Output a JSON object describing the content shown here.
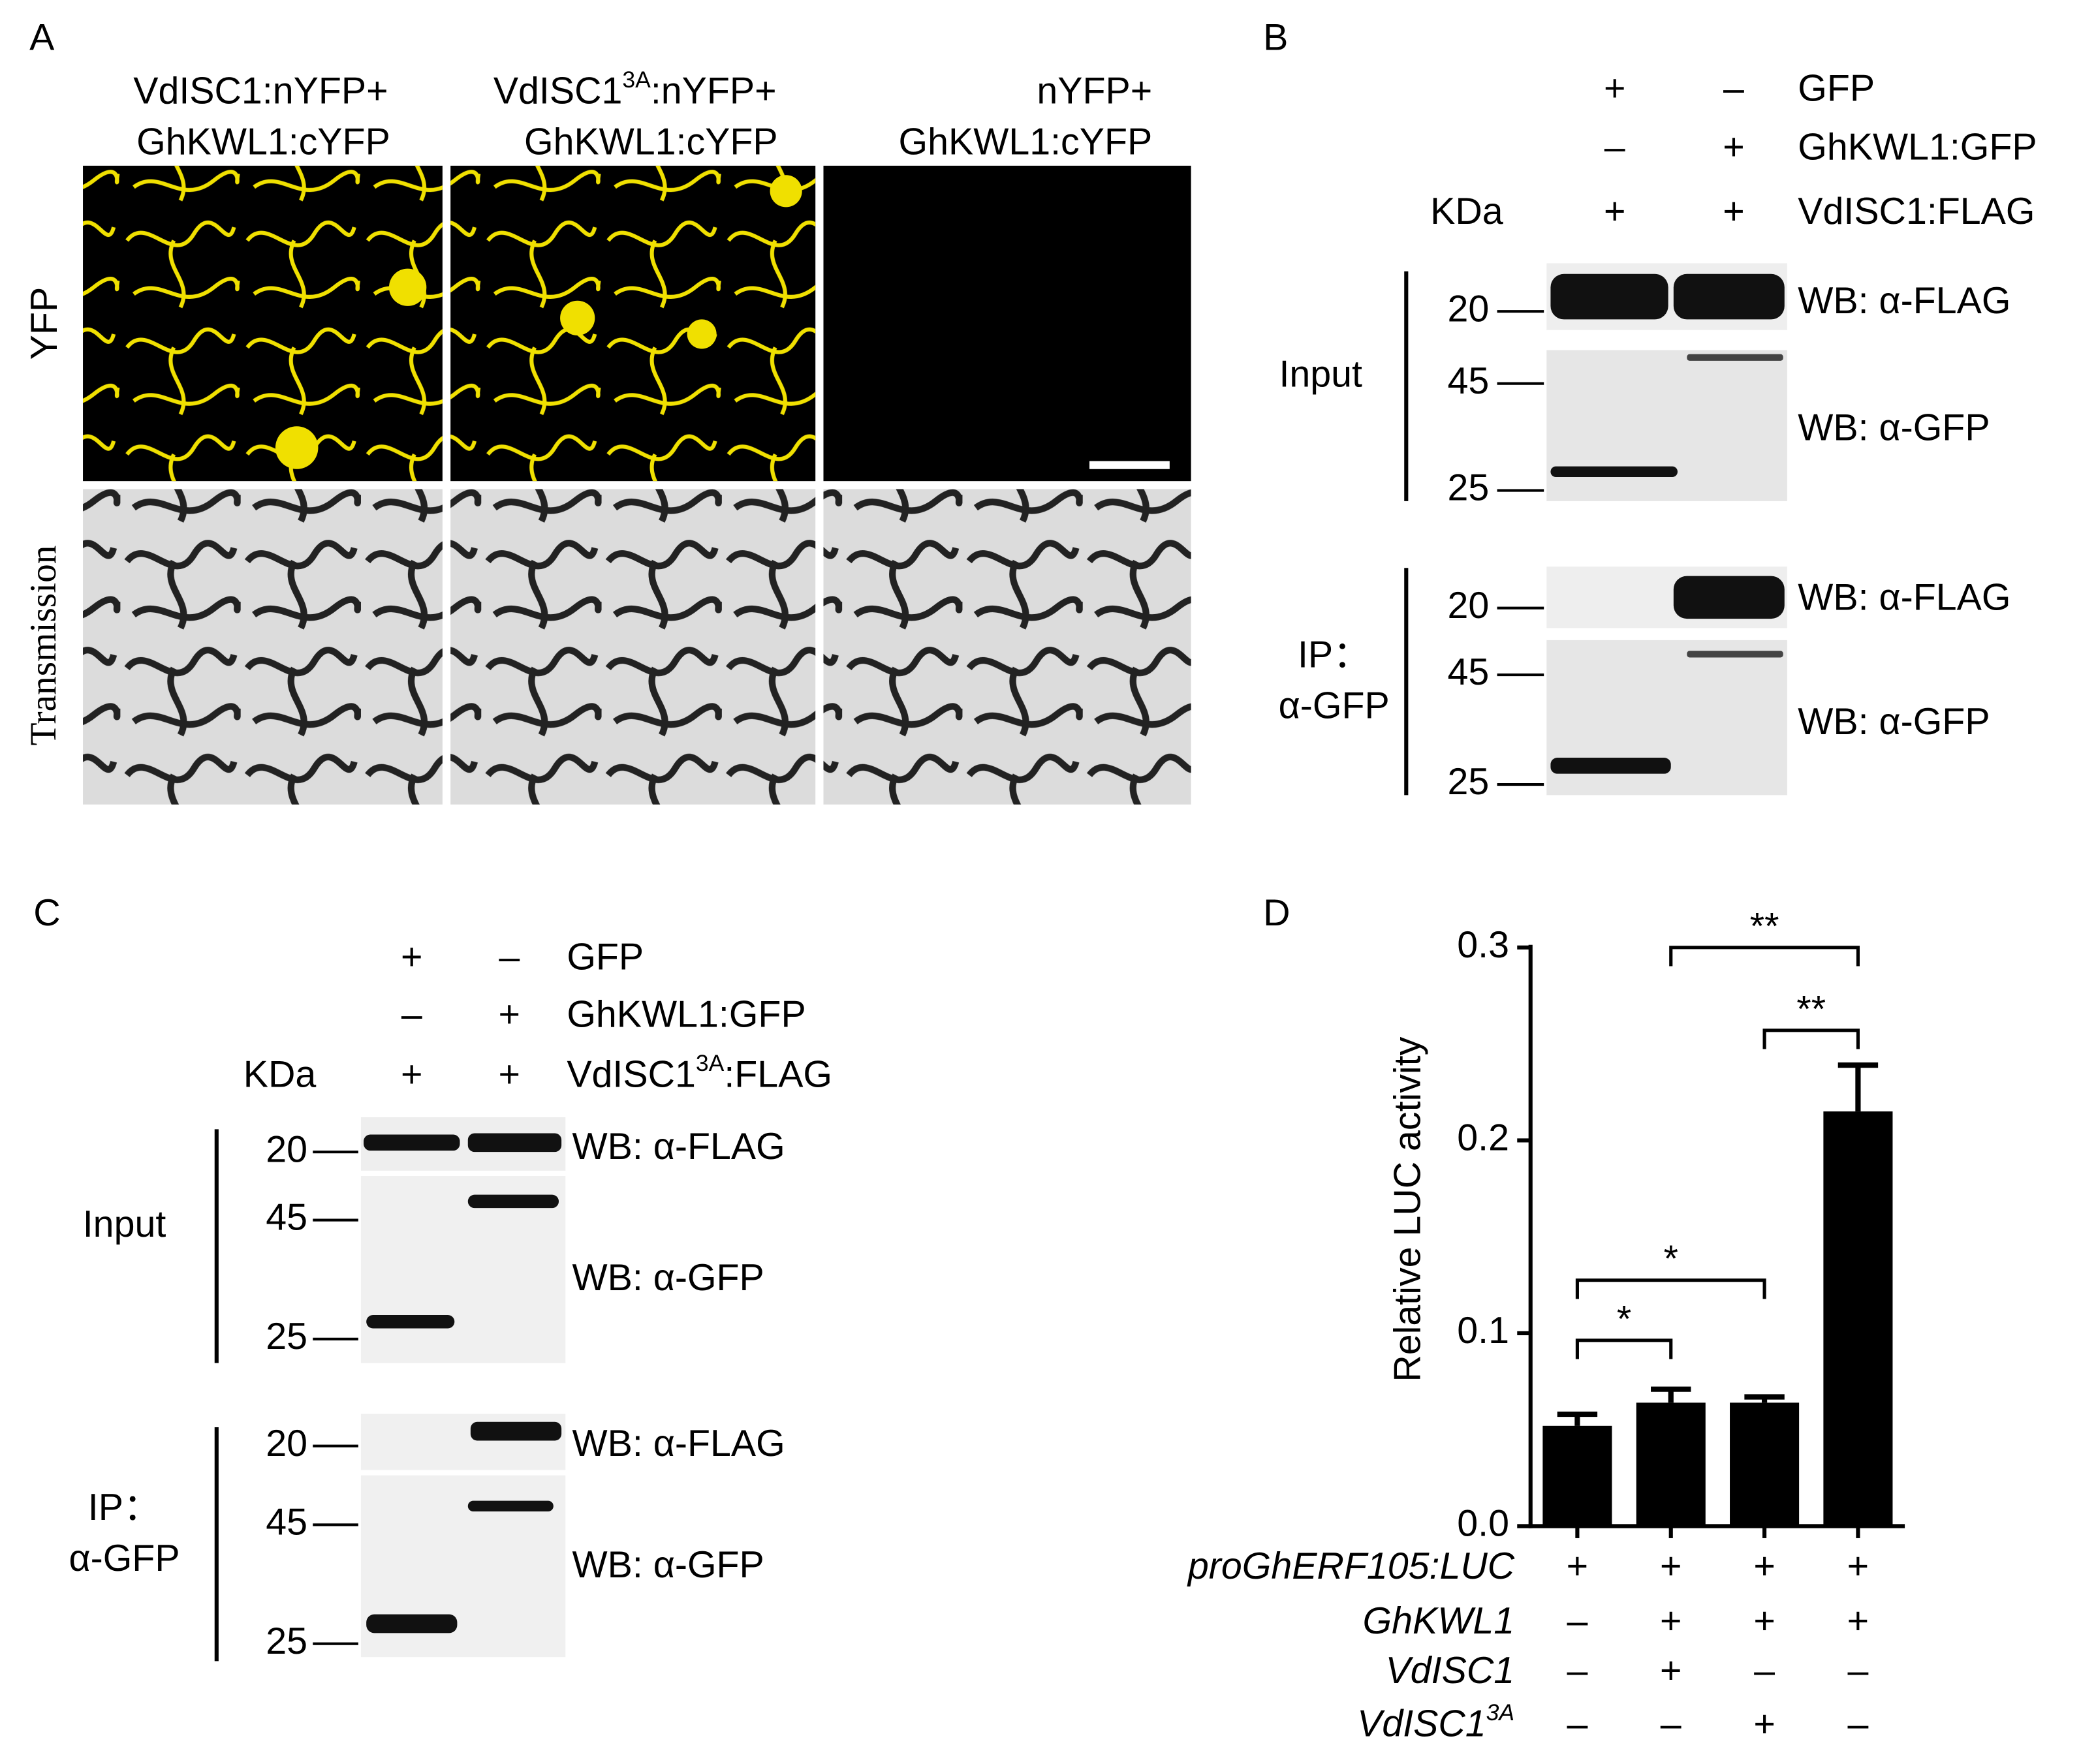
{
  "panel_a": {
    "label": "A",
    "columns": [
      {
        "line1": "VdISC1:nYFP+",
        "line2": "GhKWL1:cYFP"
      },
      {
        "line1": {
          "base": "VdISC1",
          "sup": "3A",
          "rest": ":nYFP+"
        },
        "line2": "GhKWL1:cYFP"
      },
      {
        "line1": "nYFP+",
        "line2": "GhKWL1:cYFP"
      }
    ],
    "rows": [
      "YFP",
      "Transmission"
    ]
  },
  "panel_b": {
    "label": "B",
    "kda": "KDa",
    "conditions": [
      {
        "name": "GFP",
        "lanes": [
          "+",
          "–"
        ]
      },
      {
        "name": "GhKWL1:GFP",
        "lanes": [
          "–",
          "+"
        ]
      },
      {
        "name": "VdISC1:FLAG",
        "lanes": [
          "+",
          "+"
        ]
      }
    ],
    "groups": [
      {
        "label": [
          "Input"
        ],
        "blots": [
          {
            "wb": "WB: α-FLAG",
            "markers": [
              "20"
            ]
          },
          {
            "wb": "WB: α-GFP",
            "markers": [
              "45",
              "25"
            ]
          }
        ]
      },
      {
        "label": [
          "IP：",
          "α-GFP"
        ],
        "blots": [
          {
            "wb": "WB: α-FLAG",
            "markers": [
              "20"
            ]
          },
          {
            "wb": "WB: α-GFP",
            "markers": [
              "45",
              "25"
            ]
          }
        ]
      }
    ]
  },
  "panel_c": {
    "label": "C",
    "kda": "KDa",
    "conditions": [
      {
        "name": "GFP",
        "lanes": [
          "+",
          "–"
        ]
      },
      {
        "name": "GhKWL1:GFP",
        "lanes": [
          "–",
          "+"
        ]
      },
      {
        "name": {
          "base": "VdISC1",
          "sup": "3A",
          "rest": ":FLAG"
        },
        "lanes": [
          "+",
          "+"
        ]
      }
    ],
    "groups": [
      {
        "label": [
          "Input"
        ],
        "blots": [
          {
            "wb": "WB:  α-FLAG",
            "markers": [
              "20"
            ]
          },
          {
            "wb": "WB:  α-GFP",
            "markers": [
              "45",
              "25"
            ]
          }
        ]
      },
      {
        "label": [
          "IP：",
          "α-GFP"
        ],
        "blots": [
          {
            "wb": "WB:  α-FLAG",
            "markers": [
              "20"
            ]
          },
          {
            "wb": "WB:  α-GFP",
            "markers": [
              "45",
              "25"
            ]
          }
        ]
      }
    ]
  },
  "chart_data": {
    "type": "bar",
    "panel_label": "D",
    "ylabel": "Relative LUC activity",
    "color": "#000000",
    "values": [
      0.052,
      0.064,
      0.064,
      0.215
    ],
    "errors": [
      0.006,
      0.007,
      0.003,
      0.024
    ],
    "ylim": [
      0,
      0.3
    ],
    "yticks": [
      {
        "value": 0,
        "label": "0.0"
      },
      0.1,
      0.2,
      0.3
    ],
    "grid": false,
    "conditions": [
      {
        "name": "proGhERF105:LUC",
        "values": [
          "+",
          "+",
          "+",
          "+"
        ]
      },
      {
        "name": "GhKWL1",
        "values": [
          "–",
          "+",
          "+",
          "+"
        ]
      },
      {
        "name": "VdISC1",
        "values": [
          "–",
          "+",
          "–",
          "–"
        ]
      },
      {
        "name": {
          "base": "VdISC1",
          "sup": "3A",
          "rest": ""
        },
        "values": [
          "–",
          "–",
          "+",
          "–"
        ]
      }
    ],
    "significance": [
      {
        "from": 0,
        "to": 1,
        "label": "*"
      },
      {
        "from": 0,
        "to": 2,
        "label": "*"
      },
      {
        "from": 2,
        "to": 3,
        "label": "**"
      },
      {
        "from": 1,
        "to": 3,
        "label": "**"
      }
    ]
  }
}
